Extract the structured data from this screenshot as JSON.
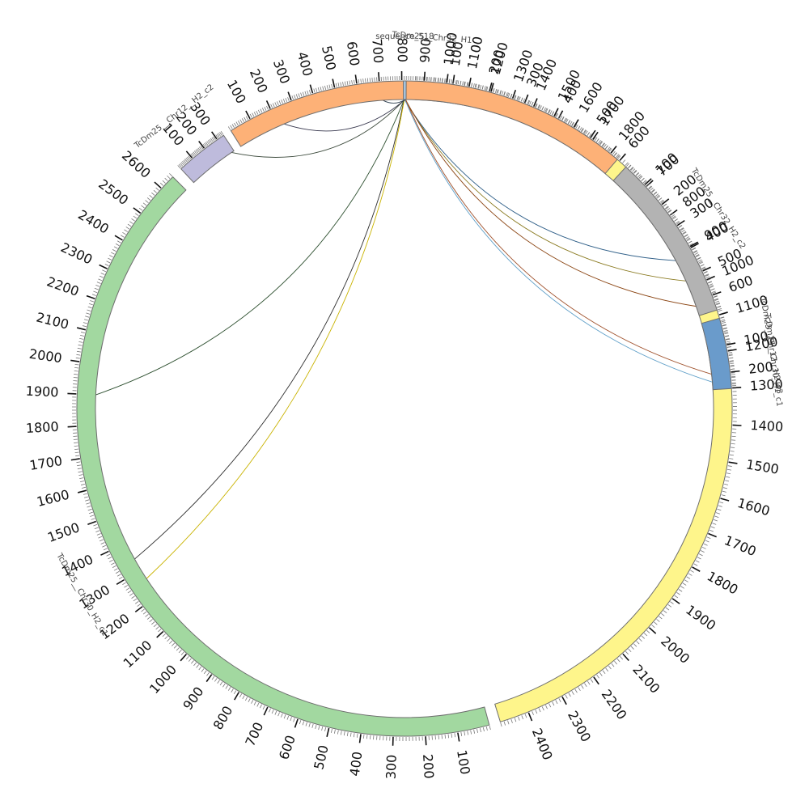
{
  "segments": [
    {
      "id": "chr30_h1_c1",
      "name": "TcDm25__Chr30_H1_c1",
      "length": 2480,
      "color": "#fef58b",
      "major_every": 100,
      "label_max": 2400
    },
    {
      "id": "chr30_h2_c1",
      "name": "TcDm25__Chr30_H2_c1",
      "length": 2650,
      "color": "#a2d8a0",
      "major_every": 100,
      "label_max": 2600
    },
    {
      "id": "chr12_h2_c2",
      "name": "TcDm25__Chr12__H2_c2",
      "length": 350,
      "color": "#bebbdc",
      "major_every": 100,
      "label_max": 300
    },
    {
      "id": "chr32_h1",
      "name": "TcDm25__Chr32_H1",
      "length": 1840,
      "color": "#fdb177",
      "major_every": 100,
      "label_max": 1800
    },
    {
      "id": "chr32_h2_c2",
      "name": "TcDm25__Chr32_H2_c2",
      "length": 660,
      "color": "#b3b3b3",
      "major_every": 100,
      "label_max": 600
    },
    {
      "id": "chr12_h2_c3",
      "name": "TcDm25__Chr12__H2_c3",
      "length": 260,
      "color": "#6a9bcb",
      "major_every": 100,
      "label_max": 200
    },
    {
      "id": "sequence_518",
      "name": "sequence_518",
      "length": 18,
      "color": "#a8c8e4",
      "major_every": 0,
      "label_max": 0
    }
  ],
  "links": [
    {
      "from": "sequence_518",
      "from_pos": 6,
      "to": "chr30_h1_c1",
      "to_pos": 915,
      "color": "#2f5f88"
    },
    {
      "from": "sequence_518",
      "from_pos": 8,
      "to": "chr30_h1_c1",
      "to_pos": 980,
      "color": "#8a7a20"
    },
    {
      "from": "sequence_518",
      "from_pos": 10,
      "to": "chr30_h1_c1",
      "to_pos": 1280,
      "color": "#5f9fc8"
    },
    {
      "from": "sequence_518",
      "from_pos": 4,
      "to": "chr30_h2_c1",
      "to_pos": 1340,
      "color": "#2d2d2d"
    },
    {
      "from": "sequence_518",
      "from_pos": 6,
      "to": "chr30_h2_c1",
      "to_pos": 1265,
      "color": "#c9b300"
    },
    {
      "from": "sequence_518",
      "from_pos": 5,
      "to": "chr30_h2_c1",
      "to_pos": 1900,
      "color": "#2e5030"
    },
    {
      "from": "sequence_518",
      "from_pos": 9,
      "to": "chr12_h2_c2",
      "to_pos": 330,
      "color": "#3c4a3c"
    },
    {
      "from": "sequence_518",
      "from_pos": 11,
      "to": "chr32_h1",
      "to_pos": 230,
      "color": "#3a3a50"
    },
    {
      "from": "sequence_518",
      "from_pos": 13,
      "to": "chr32_h1",
      "to_pos": 710,
      "color": "#334455"
    },
    {
      "from": "sequence_518",
      "from_pos": 14,
      "to": "chr32_h2_c2",
      "to_pos": 620,
      "color": "#8b4513"
    },
    {
      "from": "sequence_518",
      "from_pos": 15,
      "to": "chr12_h2_c3",
      "to_pos": 200,
      "color": "#a0522d"
    }
  ]
}
